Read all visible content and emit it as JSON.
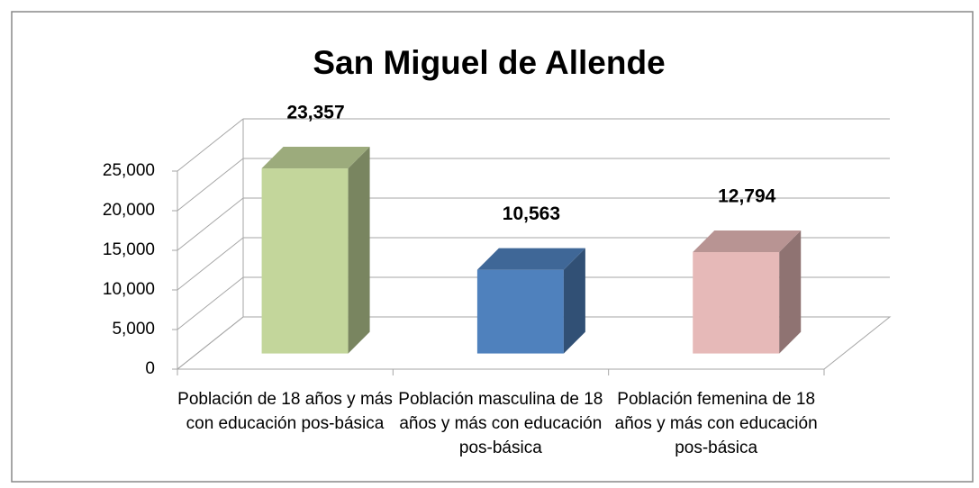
{
  "chart_data": {
    "type": "bar3d",
    "title": "San Miguel de Allende",
    "categories": [
      "Población de 18 años y más con educación pos-básica",
      "Población masculina de 18 años y más con educación pos-básica",
      "Población femenina de 18 años y más con educación pos-básica"
    ],
    "values": [
      23357,
      10563,
      12794
    ],
    "value_labels": [
      "23,357",
      "10,563",
      "12,794"
    ],
    "colors": [
      "#c3d69b",
      "#4f81bd",
      "#e6b9b8"
    ],
    "ylim": [
      0,
      25000
    ],
    "yticks": [
      0,
      {
        "value": 5000,
        "label": "5,000"
      },
      {
        "value": 10000,
        "label": "10,000"
      },
      {
        "value": 15000,
        "label": "15,000"
      },
      {
        "value": 20000,
        "label": "20,000"
      },
      {
        "value": 25000,
        "label": "25,000"
      }
    ],
    "grid": true
  }
}
